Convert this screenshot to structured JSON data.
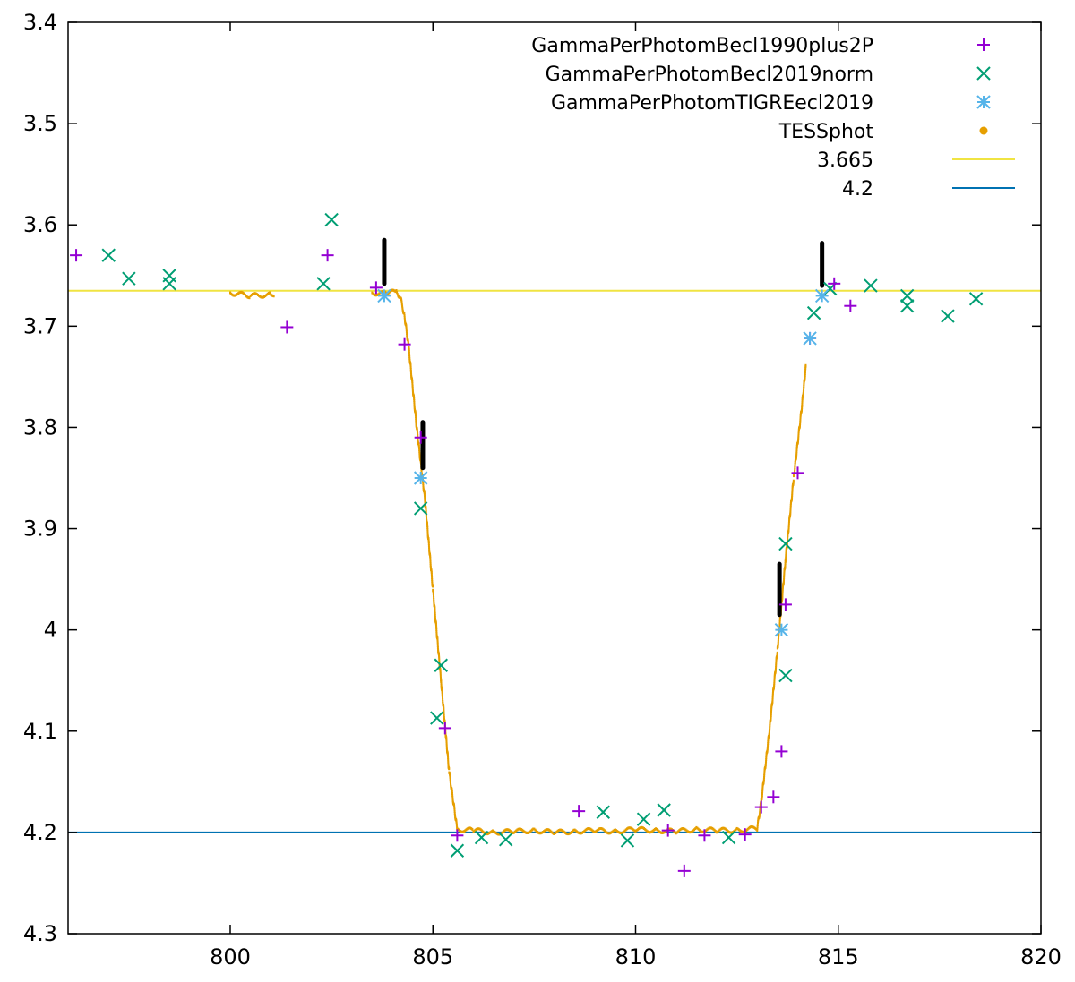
{
  "chart_data": {
    "type": "scatter",
    "title": "",
    "xlabel": "",
    "ylabel": "",
    "xlim": [
      796,
      820
    ],
    "ylim": [
      4.3,
      3.4
    ],
    "y_inverted": true,
    "grid": false,
    "legend_position": "top-right",
    "x_ticks": [
      "800",
      "805",
      "810",
      "815",
      "820"
    ],
    "y_ticks": [
      "3.4",
      "3.5",
      "3.6",
      "3.7",
      "3.8",
      "3.9",
      "4",
      "4.1",
      "4.2",
      "4.3"
    ],
    "series": [
      {
        "name": "GammaPerPhotomBecl1990plus2P",
        "marker": "plus",
        "color": "#9400d3",
        "points": [
          [
            796.2,
            3.63
          ],
          [
            802.4,
            3.63
          ],
          [
            801.4,
            3.701
          ],
          [
            803.6,
            3.662
          ],
          [
            804.3,
            3.718
          ],
          [
            804.7,
            3.81
          ],
          [
            805.3,
            4.097
          ],
          [
            805.6,
            4.203
          ],
          [
            808.6,
            4.179
          ],
          [
            811.2,
            4.238
          ],
          [
            811.7,
            4.203
          ],
          [
            812.7,
            4.202
          ],
          [
            813.1,
            4.175
          ],
          [
            813.4,
            4.165
          ],
          [
            813.6,
            4.12
          ],
          [
            813.7,
            3.975
          ],
          [
            814.0,
            3.845
          ],
          [
            814.3,
            3.712
          ],
          [
            814.9,
            3.658
          ],
          [
            815.3,
            3.68
          ],
          [
            810.8,
            4.198
          ]
        ]
      },
      {
        "name": "GammaPerPhotomBecl2019norm",
        "marker": "cross",
        "color": "#009e73",
        "points": [
          [
            797.0,
            3.63
          ],
          [
            797.5,
            3.653
          ],
          [
            798.5,
            3.65
          ],
          [
            798.5,
            3.658
          ],
          [
            802.3,
            3.658
          ],
          [
            802.5,
            3.595
          ],
          [
            804.7,
            3.88
          ],
          [
            805.2,
            4.035
          ],
          [
            805.1,
            4.087
          ],
          [
            805.6,
            4.218
          ],
          [
            806.2,
            4.205
          ],
          [
            806.8,
            4.207
          ],
          [
            809.2,
            4.18
          ],
          [
            809.8,
            4.208
          ],
          [
            810.2,
            4.187
          ],
          [
            810.7,
            4.178
          ],
          [
            812.3,
            4.205
          ],
          [
            813.7,
            3.915
          ],
          [
            813.7,
            4.045
          ],
          [
            814.4,
            3.687
          ],
          [
            814.8,
            3.663
          ],
          [
            815.8,
            3.66
          ],
          [
            816.7,
            3.67
          ],
          [
            816.7,
            3.68
          ],
          [
            817.7,
            3.69
          ],
          [
            818.4,
            3.673
          ]
        ]
      },
      {
        "name": "GammaPerPhotomTIGREecl2019",
        "marker": "star",
        "color": "#56b4e9",
        "points": [
          [
            803.8,
            3.67
          ],
          [
            804.7,
            3.85
          ],
          [
            813.6,
            4.0
          ],
          [
            814.3,
            3.712
          ],
          [
            814.6,
            3.67
          ]
        ]
      },
      {
        "name": "TESSphot",
        "marker": "dot",
        "color": "#e69f00",
        "curve": [
          [
            800.0,
            3.667
          ],
          [
            800.5,
            3.67
          ],
          [
            801.0,
            3.669
          ],
          [
            801.1,
            3.668
          ]
        ],
        "curve2": [
          [
            803.5,
            3.667
          ],
          [
            803.9,
            3.668
          ],
          [
            804.1,
            3.665
          ],
          [
            804.2,
            3.672
          ],
          [
            804.3,
            3.69
          ],
          [
            804.4,
            3.72
          ],
          [
            804.5,
            3.76
          ],
          [
            804.6,
            3.8
          ],
          [
            804.8,
            3.87
          ],
          [
            805.0,
            3.96
          ],
          [
            805.2,
            4.05
          ],
          [
            805.4,
            4.14
          ],
          [
            805.6,
            4.197
          ],
          [
            806.0,
            4.198
          ],
          [
            806.5,
            4.2
          ],
          [
            807.0,
            4.199
          ],
          [
            807.5,
            4.198
          ],
          [
            808.0,
            4.2
          ],
          [
            808.5,
            4.199
          ],
          [
            809.0,
            4.198
          ],
          [
            809.5,
            4.199
          ],
          [
            810.0,
            4.197
          ],
          [
            810.5,
            4.198
          ],
          [
            811.0,
            4.199
          ],
          [
            811.5,
            4.197
          ],
          [
            812.0,
            4.198
          ],
          [
            812.5,
            4.198
          ],
          [
            813.0,
            4.196
          ],
          [
            813.1,
            4.17
          ],
          [
            813.3,
            4.1
          ],
          [
            813.5,
            4.02
          ],
          [
            813.7,
            3.93
          ],
          [
            813.9,
            3.85
          ],
          [
            814.1,
            3.78
          ],
          [
            814.2,
            3.74
          ]
        ]
      },
      {
        "name": "3.665",
        "marker": "line",
        "color": "#f0e442",
        "value": 3.665
      },
      {
        "name": "4.2",
        "marker": "line",
        "color": "#0072b2",
        "value": 4.2
      }
    ],
    "annotations": [
      {
        "x": 803.8,
        "y1": 3.615,
        "y2": 3.658,
        "color": "#000000"
      },
      {
        "x": 804.75,
        "y1": 3.795,
        "y2": 3.84,
        "color": "#000000"
      },
      {
        "x": 813.55,
        "y1": 3.935,
        "y2": 3.985,
        "color": "#000000"
      },
      {
        "x": 814.6,
        "y1": 3.618,
        "y2": 3.66,
        "color": "#000000"
      }
    ]
  }
}
